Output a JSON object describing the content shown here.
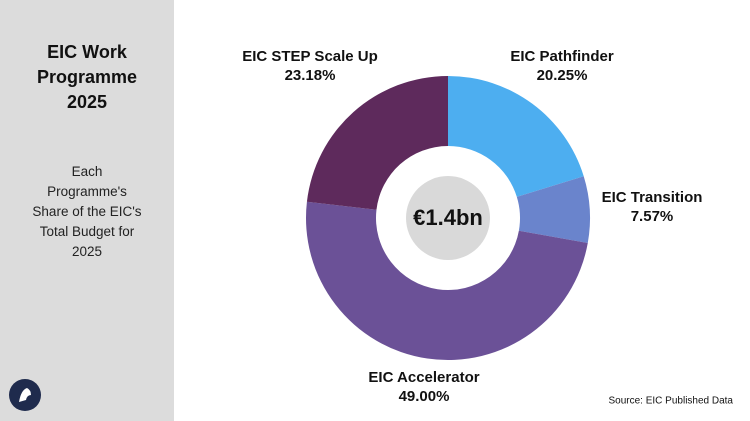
{
  "chart_data": {
    "type": "donut",
    "title": "EIC Work Programme 2025",
    "subtitle": "Each Programme's Share of the EIC's Total Budget for 2025",
    "center_label": "€1.4bn",
    "source": "Source: EIC Published Data",
    "categories": [
      "EIC Pathfinder",
      "EIC Transition",
      "EIC Accelerator",
      "EIC STEP Scale Up"
    ],
    "values": [
      20.25,
      7.57,
      49.0,
      23.18
    ],
    "value_labels": [
      "20.25%",
      "7.57%",
      "49.00%",
      "23.18%"
    ],
    "colors": [
      "#4daef0",
      "#6a84cc",
      "#6b5197",
      "#5e2a5c"
    ]
  }
}
